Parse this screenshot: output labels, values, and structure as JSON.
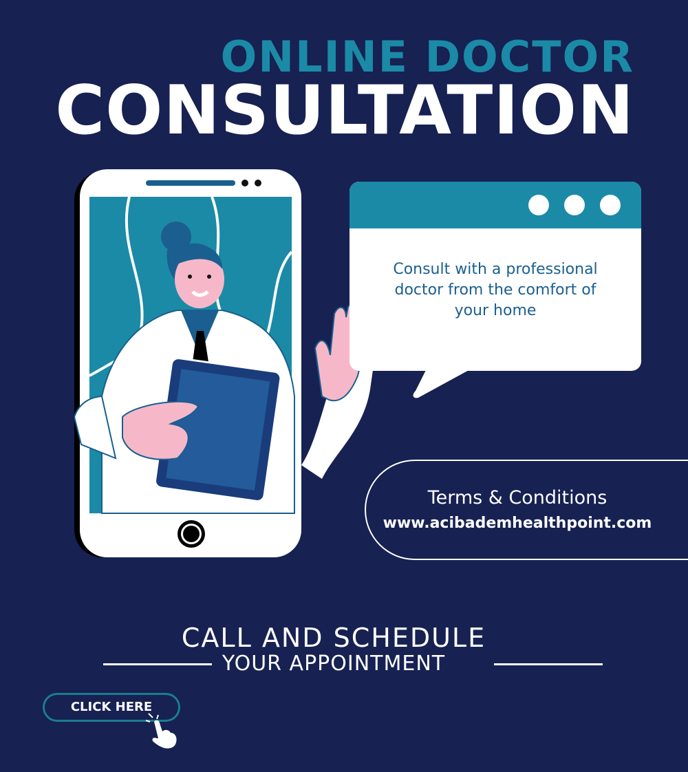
{
  "header": {
    "line1": "ONLINE DOCTOR",
    "line2": "CONSULTATION"
  },
  "bubble": {
    "text": "Consult with a professional doctor from the comfort of your home"
  },
  "terms": {
    "title": "Terms & Conditions",
    "url": "www.acibademhealthpoint.com"
  },
  "cta": {
    "line1": "CALL AND SCHEDULE",
    "line2": "YOUR APPOINTMENT",
    "button": "CLICK HERE"
  },
  "colors": {
    "background": "#172152",
    "accent": "#1b8aa6",
    "skin": "#f6b8c8"
  },
  "icons": [
    "phone-illustration",
    "doctor-illustration",
    "speech-bubble",
    "pointing-hand-icon"
  ]
}
